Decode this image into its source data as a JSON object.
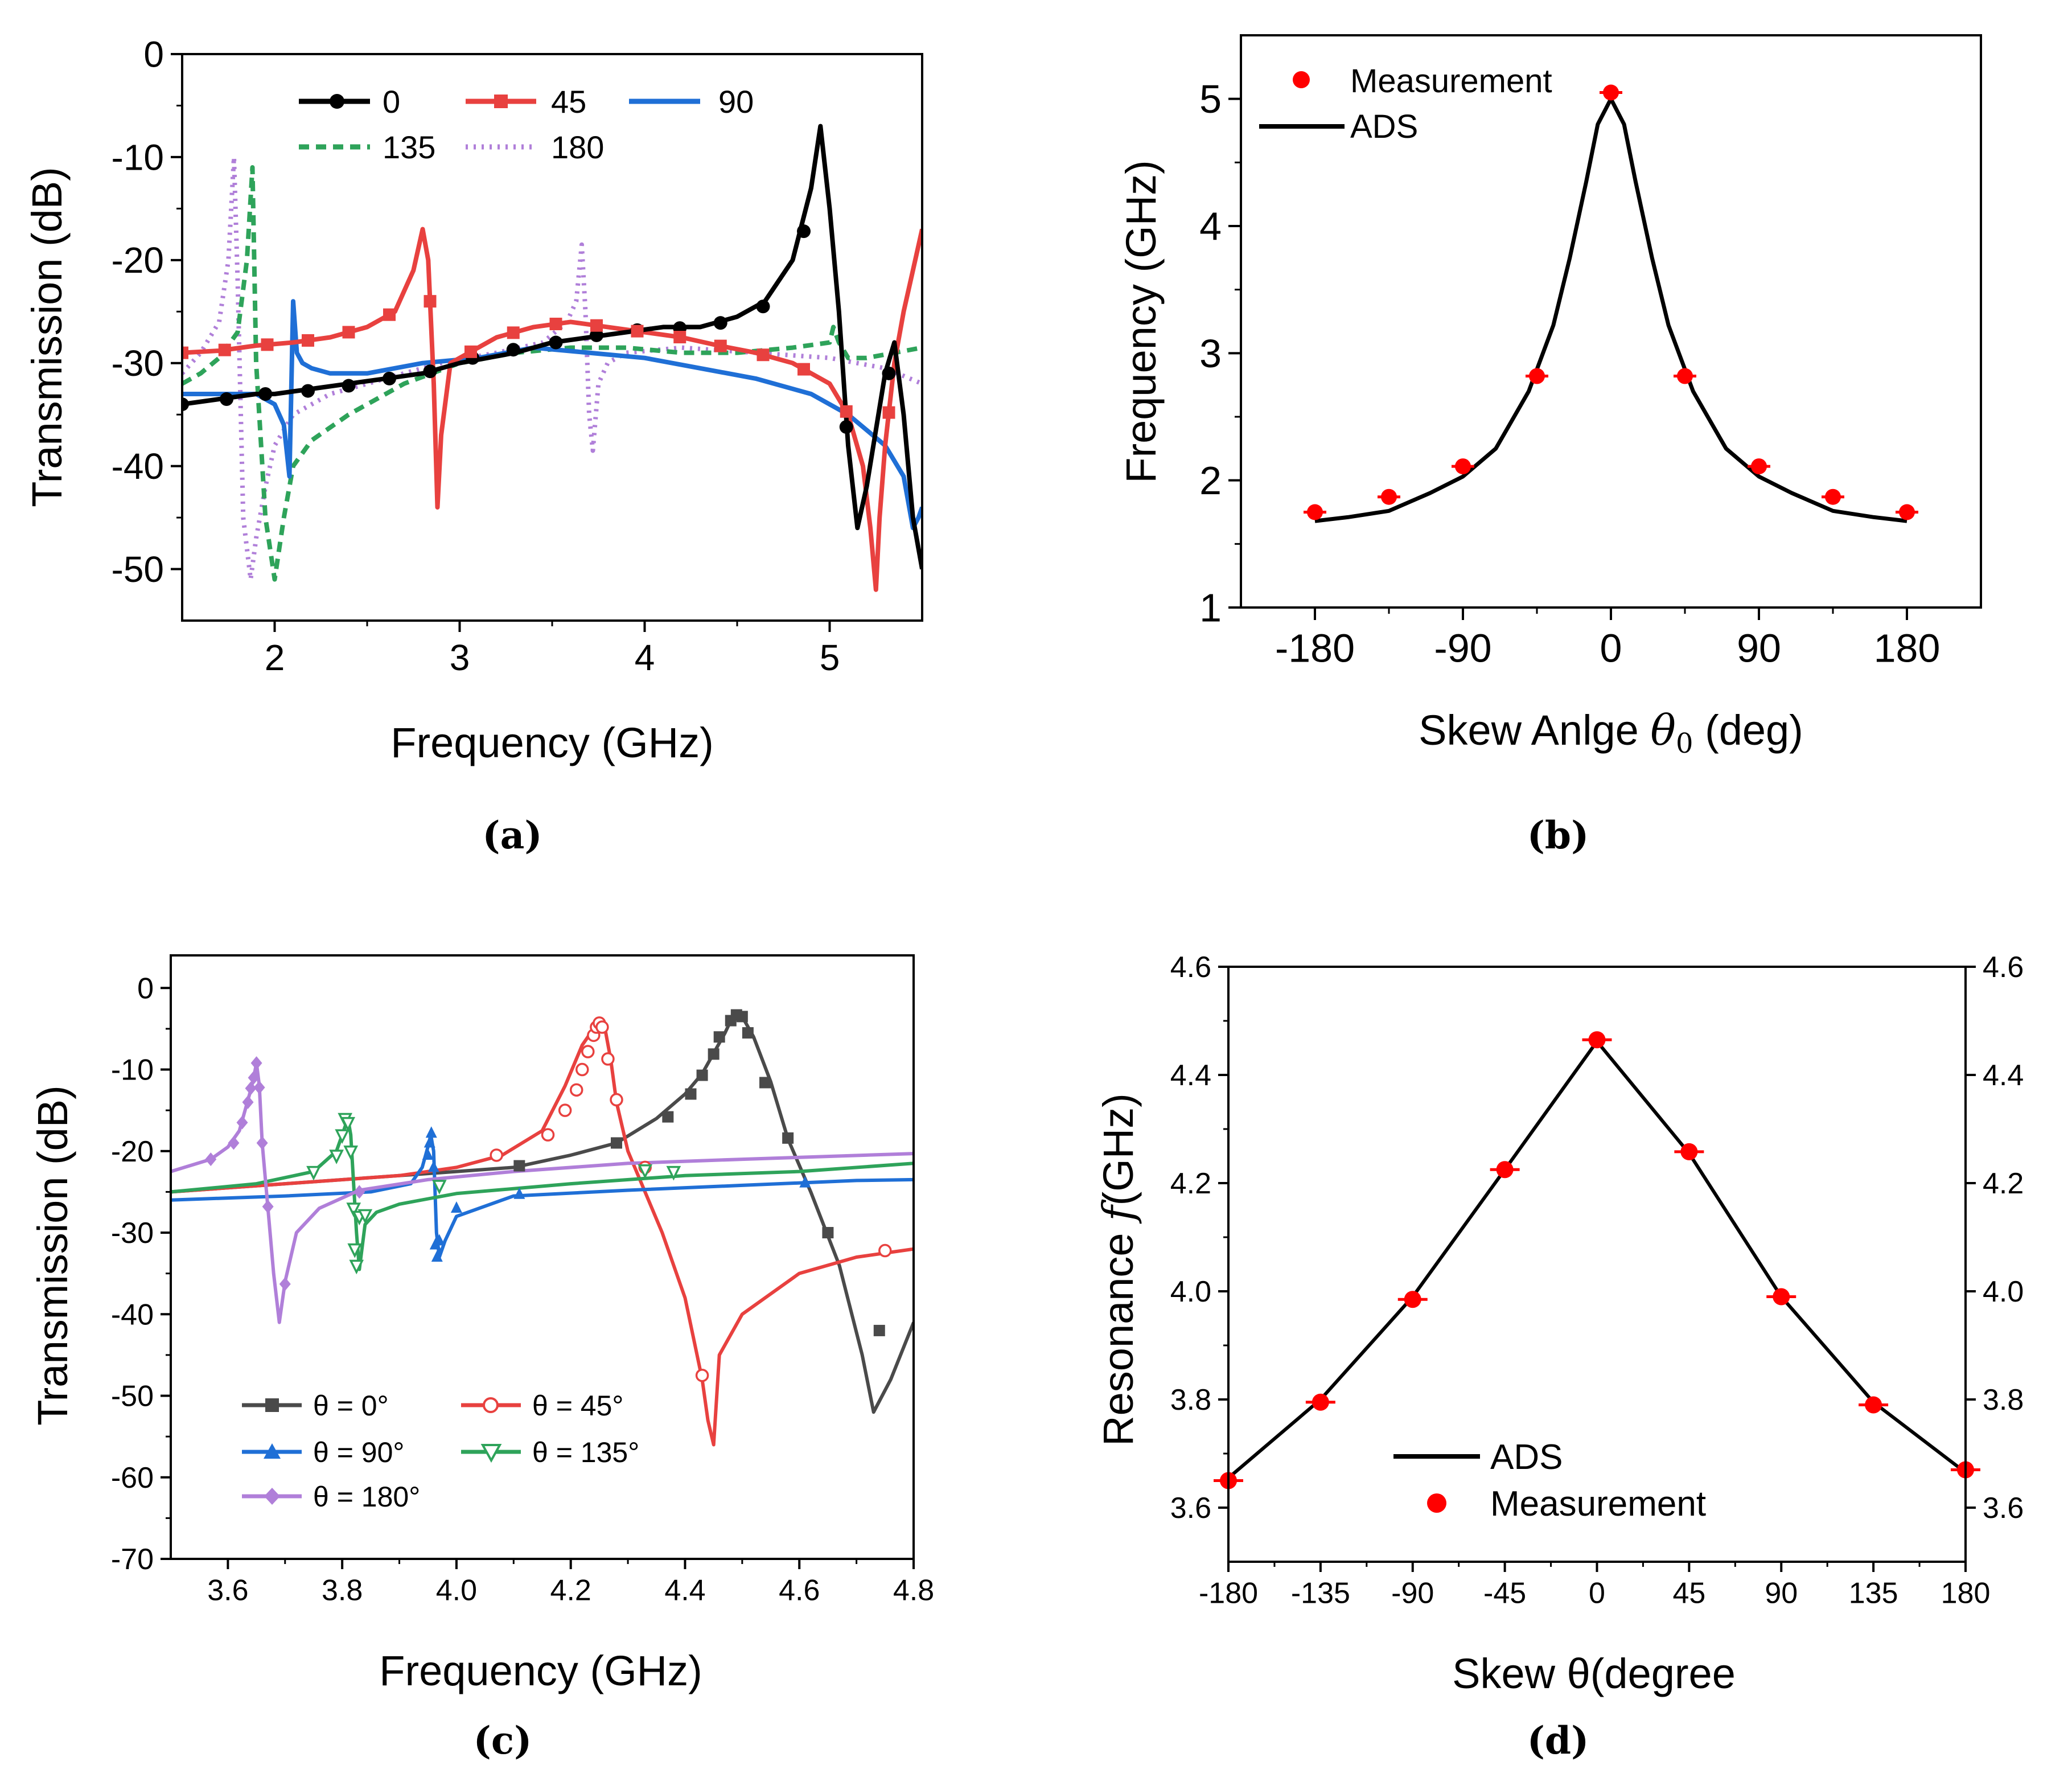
{
  "figure": {
    "panels": [
      "(a)",
      "(b)",
      "(c)",
      "(d)"
    ]
  },
  "chart_data": [
    {
      "id": "a",
      "type": "line",
      "caption": "(a)",
      "xlabel": "Frequency (GHz)",
      "ylabel": "Transmission (dB)",
      "xlim": [
        1.5,
        5.5
      ],
      "ylim": [
        -55,
        0
      ],
      "xticks": [
        2,
        3,
        4,
        5
      ],
      "yticks": [
        0,
        -10,
        -20,
        -30,
        -40,
        -50
      ],
      "legend": [
        {
          "name": "0",
          "color": "#000000",
          "style": "solid",
          "marker": "circle"
        },
        {
          "name": "45",
          "color": "#e8413f",
          "style": "solid",
          "marker": "square"
        },
        {
          "name": "90",
          "color": "#1f6fd6",
          "style": "solid",
          "marker": "none"
        },
        {
          "name": "135",
          "color": "#2ea35a",
          "style": "dashed",
          "marker": "none"
        },
        {
          "name": "180",
          "color": "#b07fd9",
          "style": "dotted",
          "marker": "none"
        }
      ],
      "series": [
        {
          "name": "0",
          "color": "#000000",
          "dash": "",
          "marker": "circle",
          "x": [
            1.5,
            1.7,
            1.9,
            2.0,
            2.2,
            2.4,
            2.6,
            2.8,
            3.0,
            3.3,
            3.5,
            3.7,
            3.9,
            4.1,
            4.3,
            4.5,
            4.65,
            4.8,
            4.9,
            4.95,
            5.0,
            5.05,
            5.1,
            5.15,
            5.2,
            5.3,
            5.35,
            5.4,
            5.45,
            5.5
          ],
          "y": [
            -34,
            -33.5,
            -33,
            -33,
            -32.5,
            -32,
            -31.5,
            -31,
            -30,
            -29,
            -28,
            -27.5,
            -27,
            -26.5,
            -26.5,
            -25.5,
            -24,
            -20,
            -13,
            -7,
            -15,
            -25,
            -38,
            -46,
            -42,
            -31,
            -28,
            -35,
            -45,
            -50
          ],
          "markers_x": [
            1.5,
            1.74,
            1.95,
            2.18,
            2.4,
            2.62,
            2.84,
            3.07,
            3.29,
            3.52,
            3.74,
            3.96,
            4.19,
            4.41,
            4.64,
            4.86,
            5.09,
            5.32
          ],
          "markers_y": [
            -34,
            -33.5,
            -33,
            -32.7,
            -32.2,
            -31.5,
            -30.8,
            -29.5,
            -28.7,
            -28,
            -27.3,
            -26.8,
            -26.6,
            -26.1,
            -24.5,
            -17.2,
            -36.2,
            -31
          ]
        },
        {
          "name": "45",
          "color": "#e8413f",
          "dash": "",
          "marker": "square",
          "x": [
            1.5,
            1.7,
            1.9,
            2.1,
            2.3,
            2.5,
            2.65,
            2.75,
            2.8,
            2.83,
            2.86,
            2.88,
            2.9,
            2.95,
            3.05,
            3.2,
            3.4,
            3.6,
            3.8,
            4.0,
            4.2,
            4.4,
            4.6,
            4.8,
            5.0,
            5.1,
            5.18,
            5.22,
            5.25,
            5.27,
            5.3,
            5.35,
            5.4,
            5.45,
            5.5
          ],
          "y": [
            -29,
            -28.8,
            -28.3,
            -28,
            -27.5,
            -26.5,
            -25,
            -21,
            -17,
            -20,
            -32,
            -44,
            -37,
            -30,
            -29,
            -27.5,
            -26.5,
            -26,
            -26.5,
            -27,
            -27.5,
            -28.3,
            -29,
            -30,
            -32,
            -35,
            -40,
            -46,
            -52,
            -45,
            -38,
            -30,
            -25,
            -21,
            -17
          ]
        },
        {
          "name": "90",
          "color": "#1f6fd6",
          "dash": "",
          "marker": "none",
          "x": [
            1.5,
            1.7,
            1.9,
            2.0,
            2.05,
            2.08,
            2.1,
            2.12,
            2.15,
            2.2,
            2.3,
            2.5,
            2.8,
            3.1,
            3.4,
            3.7,
            4.0,
            4.3,
            4.6,
            4.9,
            5.1,
            5.3,
            5.4,
            5.45,
            5.48,
            5.5
          ],
          "y": [
            -33,
            -33,
            -33,
            -34,
            -36,
            -41,
            -24,
            -29,
            -30,
            -30.5,
            -31,
            -31,
            -30,
            -29.5,
            -28.5,
            -29,
            -29.5,
            -30.5,
            -31.5,
            -33,
            -35,
            -38,
            -41,
            -46,
            -45,
            -44
          ]
        },
        {
          "name": "135",
          "color": "#2ea35a",
          "dash": "18,12",
          "marker": "none",
          "x": [
            1.5,
            1.6,
            1.7,
            1.8,
            1.85,
            1.88,
            1.9,
            1.95,
            2.0,
            2.05,
            2.1,
            2.2,
            2.4,
            2.7,
            3.0,
            3.3,
            3.6,
            3.9,
            4.2,
            4.5,
            4.8,
            5.0,
            5.02,
            5.05,
            5.1,
            5.2,
            5.35,
            5.5
          ],
          "y": [
            -32,
            -31,
            -29.5,
            -27,
            -20,
            -11,
            -30,
            -45,
            -51,
            -45,
            -40,
            -37.5,
            -35,
            -32,
            -30,
            -29,
            -28.5,
            -28.5,
            -29,
            -29,
            -28.5,
            -28,
            -26.5,
            -28,
            -29.5,
            -29.5,
            -29,
            -28.5
          ]
        },
        {
          "name": "180",
          "color": "#b07fd9",
          "dash": "4,10",
          "marker": "none",
          "x": [
            1.5,
            1.6,
            1.7,
            1.75,
            1.78,
            1.8,
            1.83,
            1.87,
            1.9,
            1.95,
            2.0,
            2.1,
            2.3,
            2.6,
            2.9,
            3.2,
            3.45,
            3.58,
            3.63,
            3.66,
            3.68,
            3.7,
            3.72,
            3.75,
            3.8,
            3.9,
            4.2,
            4.6,
            5.0,
            5.3,
            5.5
          ],
          "y": [
            -31,
            -29,
            -26,
            -20,
            -10,
            -22,
            -45,
            -51,
            -47,
            -42,
            -38,
            -35,
            -33,
            -31.5,
            -30,
            -29,
            -28,
            -26,
            -24,
            -18.5,
            -25,
            -35,
            -38.5,
            -32,
            -30,
            -29,
            -28.5,
            -29,
            -29.5,
            -30.5,
            -32
          ]
        }
      ]
    },
    {
      "id": "b",
      "type": "scatter",
      "caption": "(b)",
      "xlabel": "Skew Anlge",
      "xlabel_symbol": "θ",
      "xlabel_sub": "0",
      "xlabel_unit": "(deg)",
      "ylabel": "Frequency (GHz)",
      "xlim": [
        -225,
        225
      ],
      "ylim": [
        1,
        5.5
      ],
      "xticks": [
        -180,
        -90,
        0,
        90,
        180
      ],
      "yticks": [
        1,
        2,
        3,
        4,
        5
      ],
      "legend": [
        {
          "name": "Measurement",
          "color": "#ff0000",
          "marker": "circle"
        },
        {
          "name": "ADS",
          "color": "#000000",
          "marker": "line"
        }
      ],
      "measurement": {
        "x": [
          -180,
          -135,
          -90,
          -45,
          0,
          45,
          90,
          135,
          180
        ],
        "y": [
          1.75,
          1.87,
          2.11,
          2.82,
          5.05,
          2.82,
          2.11,
          1.87,
          1.75
        ]
      },
      "ads": {
        "x": [
          -180,
          -160,
          -135,
          -110,
          -90,
          -70,
          -50,
          -35,
          -25,
          -15,
          -8,
          0,
          8,
          15,
          25,
          35,
          50,
          70,
          90,
          110,
          135,
          160,
          180
        ],
        "y": [
          1.68,
          1.71,
          1.76,
          1.9,
          2.03,
          2.25,
          2.7,
          3.22,
          3.75,
          4.35,
          4.8,
          5.0,
          4.8,
          4.35,
          3.75,
          3.22,
          2.7,
          2.25,
          2.03,
          1.9,
          1.76,
          1.71,
          1.68
        ]
      }
    },
    {
      "id": "c",
      "type": "line",
      "caption": "(c)",
      "xlabel": "Frequency (GHz)",
      "ylabel": "Transmission (dB)",
      "xlim": [
        3.5,
        4.8
      ],
      "ylim": [
        -70,
        4
      ],
      "xticks": [
        3.6,
        3.8,
        4.0,
        4.2,
        4.4,
        4.6,
        4.8
      ],
      "yticks": [
        0,
        -10,
        -20,
        -30,
        -40,
        -50,
        -60,
        -70
      ],
      "legend": [
        {
          "name": "θ = 0°",
          "color": "#4a4a4a",
          "marker": "square"
        },
        {
          "name": "θ = 45°",
          "color": "#e8413f",
          "marker": "open-circle"
        },
        {
          "name": "θ = 90°",
          "color": "#1f6fd6",
          "marker": "triangle"
        },
        {
          "name": "θ = 135°",
          "color": "#2ea35a",
          "marker": "open-triangle-down"
        },
        {
          "name": "θ = 180°",
          "color": "#b07fd9",
          "marker": "diamond"
        }
      ],
      "series": [
        {
          "name": "θ = 0°",
          "color": "#4a4a4a",
          "marker": "square",
          "x": [
            3.5,
            3.7,
            3.9,
            4.0,
            4.1,
            4.2,
            4.28,
            4.35,
            4.4,
            4.43,
            4.45,
            4.47,
            4.48,
            4.49,
            4.5,
            4.52,
            4.55,
            4.58,
            4.62,
            4.67,
            4.71,
            4.73,
            4.76,
            4.8
          ],
          "y": [
            -25,
            -24,
            -23,
            -22.5,
            -22,
            -20.5,
            -19,
            -16,
            -13,
            -10.5,
            -8,
            -5.5,
            -4,
            -3.2,
            -3.5,
            -6,
            -11.5,
            -18.5,
            -25,
            -34,
            -45,
            -52,
            -48,
            -41
          ],
          "markers_x": [
            4.11,
            4.28,
            4.37,
            4.41,
            4.43,
            4.45,
            4.46,
            4.48,
            4.49,
            4.5,
            4.51,
            4.54,
            4.58,
            4.65,
            4.74
          ],
          "markers_y": [
            -21.8,
            -19,
            -15.8,
            -13,
            -10.7,
            -8.1,
            -6,
            -4,
            -3.3,
            -3.5,
            -5.5,
            -11.6,
            -18.4,
            -30,
            -42
          ]
        },
        {
          "name": "θ = 45°",
          "color": "#e8413f",
          "marker": "open-circle",
          "x": [
            3.5,
            3.7,
            3.9,
            4.0,
            4.08,
            4.15,
            4.19,
            4.22,
            4.24,
            4.25,
            4.26,
            4.27,
            4.28,
            4.3,
            4.33,
            4.36,
            4.4,
            4.43,
            4.44,
            4.45,
            4.46,
            4.5,
            4.6,
            4.7,
            4.8
          ],
          "y": [
            -25,
            -24,
            -23,
            -22,
            -20.5,
            -17.5,
            -12,
            -7,
            -5,
            -4.3,
            -5,
            -8.8,
            -14,
            -20,
            -25,
            -30,
            -38,
            -48,
            -53,
            -56,
            -45,
            -40,
            -35,
            -33,
            -32
          ],
          "markers_x": [
            4.07,
            4.16,
            4.19,
            4.21,
            4.22,
            4.23,
            4.24,
            4.245,
            4.25,
            4.255,
            4.265,
            4.28,
            4.33,
            4.43,
            4.75
          ],
          "markers_y": [
            -20.5,
            -18,
            -15,
            -12.5,
            -10,
            -7.8,
            -5.8,
            -4.8,
            -4.3,
            -4.8,
            -8.7,
            -13.7,
            -22,
            -47.5,
            -32.2
          ]
        },
        {
          "name": "θ = 90°",
          "color": "#1f6fd6",
          "marker": "triangle",
          "x": [
            3.5,
            3.7,
            3.85,
            3.92,
            3.94,
            3.95,
            3.955,
            3.96,
            3.965,
            3.97,
            3.98,
            4.0,
            4.1,
            4.3,
            4.5,
            4.7,
            4.8
          ],
          "y": [
            -26,
            -25.5,
            -25,
            -24,
            -22,
            -19.5,
            -18,
            -20,
            -30,
            -33,
            -31,
            -28,
            -25.5,
            -24.8,
            -24.2,
            -23.6,
            -23.5
          ],
          "markers_x": [
            3.95,
            3.953,
            3.956,
            3.96,
            3.963,
            3.966,
            3.97,
            4.0,
            4.11,
            4.61
          ],
          "markers_y": [
            -20.5,
            -19,
            -17.8,
            -22,
            -31.5,
            -33,
            -31,
            -27,
            -25.3,
            -23.9
          ]
        },
        {
          "name": "θ = 135°",
          "color": "#2ea35a",
          "marker": "open-triangle-down",
          "x": [
            3.5,
            3.65,
            3.75,
            3.79,
            3.8,
            3.81,
            3.815,
            3.82,
            3.825,
            3.83,
            3.84,
            3.86,
            3.9,
            4.0,
            4.2,
            4.4,
            4.6,
            4.8
          ],
          "y": [
            -25,
            -24,
            -22.5,
            -20,
            -18,
            -16,
            -18,
            -24,
            -30,
            -34.5,
            -29,
            -27.5,
            -26.5,
            -25.2,
            -24,
            -23,
            -22.5,
            -21.5
          ],
          "markers_x": [
            3.75,
            3.79,
            3.8,
            3.805,
            3.81,
            3.815,
            3.82,
            3.822,
            3.825,
            3.83,
            3.84,
            3.97,
            4.33,
            4.38
          ],
          "markers_y": [
            -22.5,
            -20.5,
            -18,
            -16,
            -16.5,
            -20,
            -27,
            -32,
            -34,
            -28,
            -27.8,
            -24.2,
            -22.3,
            -22.5
          ]
        },
        {
          "name": "θ = 180°",
          "color": "#b07fd9",
          "marker": "diamond",
          "x": [
            3.5,
            3.57,
            3.6,
            3.62,
            3.63,
            3.64,
            3.645,
            3.65,
            3.655,
            3.66,
            3.67,
            3.68,
            3.69,
            3.7,
            3.72,
            3.76,
            3.83,
            3.95,
            4.1,
            4.3,
            4.5,
            4.8
          ],
          "y": [
            -22.5,
            -21,
            -19.5,
            -17.5,
            -15,
            -12.5,
            -11,
            -9.2,
            -12,
            -19,
            -27,
            -35,
            -41,
            -36,
            -30,
            -27,
            -24.8,
            -23.5,
            -22.5,
            -21.5,
            -21,
            -20.3
          ],
          "markers_x": [
            3.57,
            3.61,
            3.625,
            3.635,
            3.64,
            3.645,
            3.65,
            3.655,
            3.66,
            3.67,
            3.7,
            3.83
          ],
          "markers_y": [
            -21,
            -19,
            -16.5,
            -14,
            -12.3,
            -11,
            -9.2,
            -12.2,
            -19,
            -26.8,
            -36.3,
            -25
          ]
        }
      ]
    },
    {
      "id": "d",
      "type": "scatter",
      "caption": "(d)",
      "xlabel": "Skew θ(degree",
      "ylabel_left": "Resonance",
      "ylabel_symbol": "f",
      "ylabel_right": "(GHz)",
      "xlim": [
        -180,
        180
      ],
      "ylim": [
        3.5,
        4.6
      ],
      "xticks": [
        -180,
        -135,
        -90,
        -45,
        0,
        45,
        90,
        135,
        180
      ],
      "yticks": [
        3.6,
        3.8,
        4.0,
        4.2,
        4.4,
        4.6
      ],
      "legend": [
        {
          "name": "ADS",
          "color": "#000000",
          "marker": "line"
        },
        {
          "name": "Measurement",
          "color": "#ff0000",
          "marker": "circle"
        }
      ],
      "measurement": {
        "x": [
          -180,
          -135,
          -90,
          -45,
          0,
          45,
          90,
          135,
          180
        ],
        "y": [
          3.65,
          3.795,
          3.985,
          4.225,
          4.465,
          4.258,
          3.99,
          3.79,
          3.67
        ]
      },
      "ads": {
        "x": [
          -180,
          -135,
          -90,
          -45,
          0,
          45,
          90,
          135,
          180
        ],
        "y": [
          3.655,
          3.8,
          3.99,
          4.225,
          4.462,
          4.255,
          3.99,
          3.795,
          3.665
        ]
      }
    }
  ]
}
